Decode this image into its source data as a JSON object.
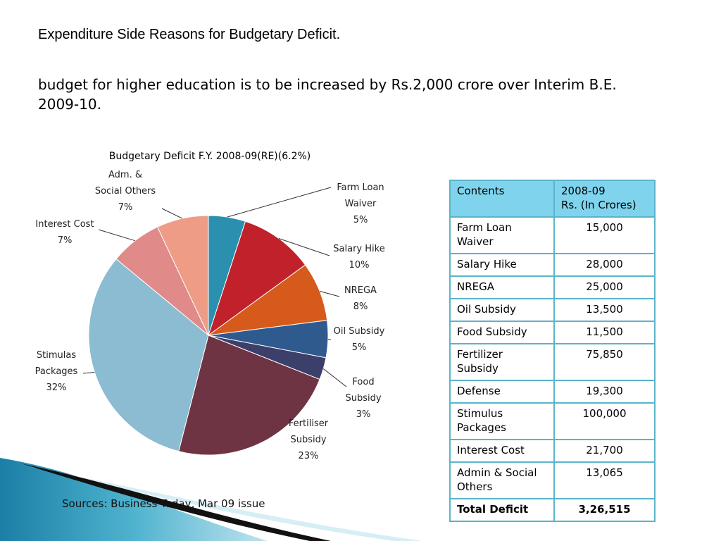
{
  "slide": {
    "title": "Expenditure Side Reasons for Budgetary Deficit.",
    "subtitle": "budget for higher education is to be increased by Rs.2,000 crore over Interim B.E. 2009-10.",
    "source": "Sources: Business Today, Mar 09 issue"
  },
  "chart_data": {
    "type": "pie",
    "title": "Budgetary Deficit F.Y. 2008-09(RE)(6.2%)",
    "slices": [
      {
        "label": [
          "Farm Loan",
          "Waiver"
        ],
        "value": 5,
        "display": "5%",
        "color": "#2b8fb0"
      },
      {
        "label": [
          "Salary Hike"
        ],
        "value": 10,
        "display": "10%",
        "color": "#c0212a"
      },
      {
        "label": [
          "NREGA"
        ],
        "value": 8,
        "display": "8%",
        "color": "#d65a1c"
      },
      {
        "label": [
          "Oil Subsidy"
        ],
        "value": 5,
        "display": "5%",
        "color": "#2f5a8e"
      },
      {
        "label": [
          "Food",
          "Subsidy"
        ],
        "value": 3,
        "display": "3%",
        "color": "#3c3f6a"
      },
      {
        "label": [
          "Fertiliser",
          "Subsidy"
        ],
        "value": 23,
        "display": "23%",
        "color": "#6e3444"
      },
      {
        "label": [
          "Stimulas",
          "Packages"
        ],
        "value": 32,
        "display": "32%",
        "color": "#8bbcd2"
      },
      {
        "label": [
          "Interest Cost"
        ],
        "value": 7,
        "display": "7%",
        "color": "#e08a8a"
      },
      {
        "label": [
          "Adm. &",
          "Social Others"
        ],
        "value": 7,
        "display": "7%",
        "color": "#ee9c86"
      }
    ]
  },
  "table": {
    "headers": [
      "Contents",
      "2008-09\nRs. (In Crores)"
    ],
    "rows": [
      [
        "Farm Loan Waiver",
        "15,000"
      ],
      [
        "Salary Hike",
        "28,000"
      ],
      [
        "NREGA",
        "25,000"
      ],
      [
        "Oil Subsidy",
        "13,500"
      ],
      [
        "Food Subsidy",
        "11,500"
      ],
      [
        "Fertilizer Subsidy",
        "75,850"
      ],
      [
        "Defense",
        "19,300"
      ],
      [
        "Stimulus Packages",
        "100,000"
      ],
      [
        "Interest Cost",
        "21,700"
      ],
      [
        "Admin & Social Others",
        "13,065"
      ]
    ],
    "total": [
      "Total Deficit",
      "3,26,515"
    ]
  }
}
